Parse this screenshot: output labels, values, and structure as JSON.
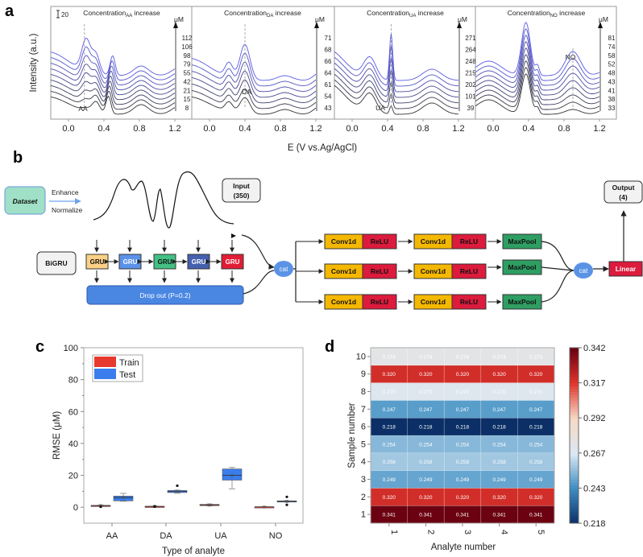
{
  "panel_labels": {
    "a": "a",
    "b": "b",
    "c": "c",
    "d": "d"
  },
  "chart_data": [
    {
      "type": "line",
      "panel": "a",
      "ylabel": "Intensity (a.u.)",
      "xlabel": "E (V vs.Ag/AgCl)",
      "scale_bar_label": "20",
      "x_ticks": [
        "0.0",
        "0.4",
        "0.8",
        "1.2"
      ],
      "xlim": [
        -0.2,
        1.39
      ],
      "unit_label": "μM",
      "colors": {
        "low": "#333333",
        "high": "#5a5ae6"
      },
      "subplots": [
        {
          "title_main": "Concentration",
          "title_sub": "AA",
          "title_end": " increase",
          "analyte_label": "AA",
          "peak_potential": 0.18,
          "concentrations": [
            "112",
            "106",
            "98",
            "79",
            "55",
            "42",
            "21",
            "15",
            "8"
          ]
        },
        {
          "title_main": "Concentration",
          "title_sub": "DA",
          "title_end": " increase",
          "analyte_label": "DA",
          "peak_potential": 0.4,
          "concentrations": [
            "71",
            "68",
            "66",
            "64",
            "61",
            "54",
            "43"
          ]
        },
        {
          "title_main": "Concentration",
          "title_sub": "UA",
          "title_end": " increase",
          "analyte_label": "UA",
          "peak_potential": 0.44,
          "concentrations": [
            "271",
            "264",
            "248",
            "215",
            "202",
            "101",
            "39"
          ]
        },
        {
          "title_main": "Concentration",
          "title_sub": "NO",
          "title_end": " increase",
          "analyte_label": "NO",
          "peak_potential": 0.9,
          "concentrations": [
            "81",
            "74",
            "58",
            "52",
            "48",
            "43",
            "41",
            "38",
            "33"
          ]
        }
      ]
    },
    {
      "type": "box",
      "panel": "c",
      "ylabel": "RMSE (μM)",
      "xlabel": "Type of analyte",
      "categories": [
        "AA",
        "DA",
        "UA",
        "NO"
      ],
      "ylim": [
        -10,
        100
      ],
      "y_ticks": [
        "0",
        "20",
        "40",
        "60",
        "80",
        "100"
      ],
      "legend_position": "top-left",
      "series": [
        {
          "name": "Train",
          "color": "#e8392f",
          "boxes": [
            {
              "min": 0.8,
              "q1": 0.8,
              "median": 1.0,
              "q3": 1.2,
              "max": 1.3,
              "mean": 1.0,
              "outliers": [
                0.3
              ]
            },
            {
              "min": 0.3,
              "q1": 0.3,
              "median": 0.5,
              "q3": 0.6,
              "max": 0.7,
              "mean": 0.5,
              "outliers": [
                0.5
              ]
            },
            {
              "min": 0.9,
              "q1": 1.0,
              "median": 1.4,
              "q3": 1.8,
              "max": 2.0,
              "mean": 1.4,
              "outliers": []
            },
            {
              "min": 0.1,
              "q1": 0.1,
              "median": 0.2,
              "q3": 0.3,
              "max": 0.3,
              "mean": 0.2,
              "outliers": []
            }
          ]
        },
        {
          "name": "Test",
          "color": "#3b7ded",
          "boxes": [
            {
              "min": 3.8,
              "q1": 4.0,
              "median": 6.0,
              "q3": 7.0,
              "max": 8.7,
              "mean": 6.0,
              "outliers": []
            },
            {
              "min": 8.8,
              "q1": 9.2,
              "median": 10.0,
              "q3": 10.5,
              "max": 10.7,
              "mean": 10.0,
              "outliers": [
                13.5
              ]
            },
            {
              "min": 11.5,
              "q1": 17.0,
              "median": 20.0,
              "q3": 24.0,
              "max": 25.0,
              "mean": 20.0,
              "outliers": []
            },
            {
              "min": 3.3,
              "q1": 3.3,
              "median": 3.7,
              "q3": 4.0,
              "max": 4.0,
              "mean": 3.7,
              "outliers": [
                6.5,
                1.5
              ]
            }
          ]
        }
      ]
    },
    {
      "type": "heatmap",
      "panel": "d",
      "xlabel": "Analyte number",
      "ylabel": "Sample number",
      "x_categories": [
        "1",
        "2",
        "3",
        "4",
        "5"
      ],
      "y_categories": [
        "1",
        "2",
        "3",
        "4",
        "5",
        "6",
        "7",
        "8",
        "9",
        "10"
      ],
      "row_values": [
        "0.341",
        "0.320",
        "0.249",
        "0.258",
        "0.254",
        "0.218",
        "0.247",
        "0.270",
        "0.320",
        "0.274"
      ],
      "colorbar_ticks": [
        "0.342",
        "0.317",
        "0.292",
        "0.267",
        "0.243",
        "0.218"
      ],
      "colorbar_range": [
        0.218,
        0.342
      ],
      "colormap": "RdBu_r"
    }
  ],
  "diagram": {
    "dataset": "Dataset",
    "enhance": "Enhance",
    "normalize": "Normalize",
    "input_title": "Input",
    "input_size": "(350)",
    "bigru": "BiGRU",
    "gru": "GRU",
    "gru_colors": [
      "#fcd086",
      "#5b92ea",
      "#43c083",
      "#4660b0",
      "#e21d36"
    ],
    "dropout": "Drop out   (P=0.2)",
    "cat": "cat",
    "conv": "Conv1d",
    "relu": "ReLU",
    "maxpool": "MaxPool",
    "linear": "Linear",
    "output_title": "Output",
    "output_size": "(4)",
    "colors": {
      "conv": "#f5b800",
      "relu": "#dc1b3d",
      "maxpool": "#2e9e62",
      "cat": "#5a93e6",
      "dropout": "#4a87e2",
      "dataset": "#9fe0c6"
    }
  }
}
